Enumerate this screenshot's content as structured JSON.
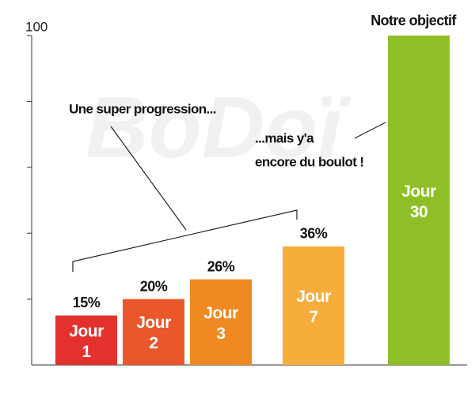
{
  "watermark": "BoDoï",
  "chart_data": {
    "type": "bar",
    "categories": [
      "Jour 1",
      "Jour 2",
      "Jour 3",
      "Jour 7",
      "Jour 30"
    ],
    "values": [
      15,
      20,
      26,
      36,
      100
    ],
    "value_labels": [
      "15%",
      "20%",
      "26%",
      "36%",
      null
    ],
    "colors": [
      "#e3312d",
      "#e9572a",
      "#ef8a22",
      "#f6ad3c",
      "#8fbf26"
    ],
    "ylim": [
      0,
      100
    ],
    "yticks": [
      100
    ],
    "minor_yticks": [
      20,
      40,
      60,
      80
    ],
    "annotations": [
      "Notre objectif",
      "Une super progression...",
      "...mais y'a",
      "encore du boulot !"
    ]
  }
}
